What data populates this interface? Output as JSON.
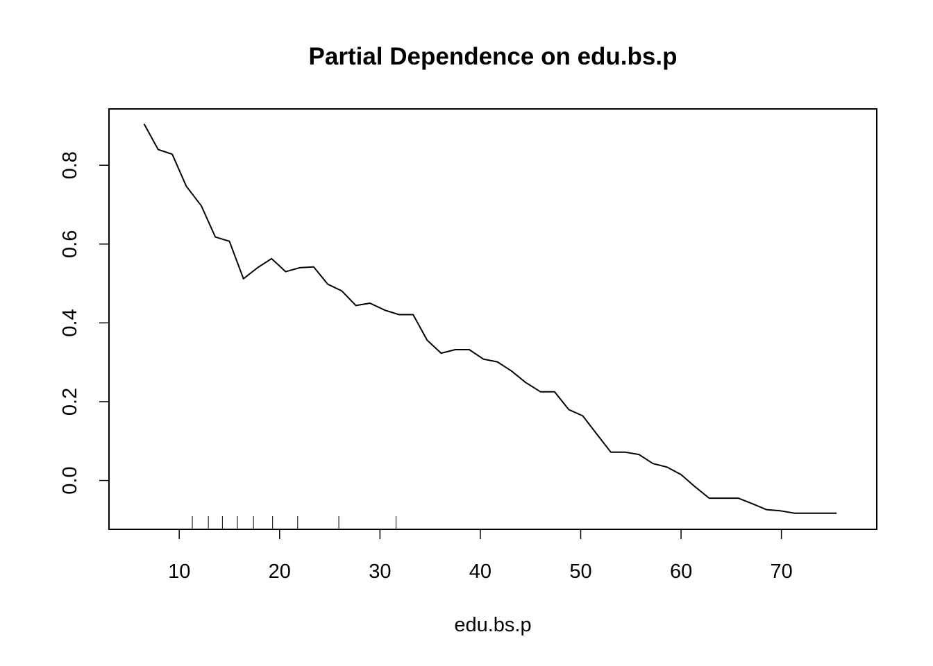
{
  "chart_data": {
    "type": "line",
    "title": "Partial Dependence on edu.bs.p",
    "xlabel": "edu.bs.p",
    "ylabel": "",
    "xlim": [
      3.0,
      79.5
    ],
    "ylim": [
      -0.124,
      0.943
    ],
    "x_ticks": [
      10,
      20,
      30,
      40,
      50,
      60,
      70
    ],
    "x_tick_labels": [
      "10",
      "20",
      "30",
      "40",
      "50",
      "60",
      "70"
    ],
    "y_ticks": [
      0.0,
      0.2,
      0.4,
      0.6,
      0.8
    ],
    "y_tick_labels": [
      "0.0",
      "0.2",
      "0.4",
      "0.6",
      "0.8"
    ],
    "grid": false,
    "legend": "none",
    "rug": [
      11.3,
      12.9,
      14.3,
      15.8,
      17.4,
      19.3,
      21.8,
      25.9,
      31.6
    ],
    "series": [
      {
        "name": "",
        "color": "#000000",
        "x": [
          6.5,
          7.9,
          9.3,
          10.7,
          12.2,
          13.6,
          15.0,
          16.4,
          17.8,
          19.2,
          20.6,
          22.0,
          23.4,
          24.8,
          26.2,
          27.6,
          29.0,
          30.5,
          31.9,
          33.3,
          34.7,
          36.1,
          37.5,
          38.9,
          40.3,
          41.7,
          43.1,
          44.5,
          46.0,
          47.4,
          48.8,
          50.2,
          51.6,
          53.0,
          54.4,
          55.8,
          57.2,
          58.6,
          60.0,
          61.4,
          62.8,
          64.2,
          65.7,
          67.1,
          68.5,
          69.9,
          71.3,
          72.7,
          74.1,
          75.5
        ],
        "y": [
          0.905,
          0.84,
          0.828,
          0.747,
          0.697,
          0.618,
          0.607,
          0.512,
          0.54,
          0.563,
          0.53,
          0.54,
          0.542,
          0.498,
          0.481,
          0.444,
          0.45,
          0.432,
          0.421,
          0.421,
          0.356,
          0.323,
          0.332,
          0.332,
          0.308,
          0.301,
          0.278,
          0.249,
          0.225,
          0.225,
          0.18,
          0.164,
          0.118,
          0.072,
          0.072,
          0.066,
          0.043,
          0.034,
          0.015,
          -0.016,
          -0.045,
          -0.045,
          -0.045,
          -0.059,
          -0.074,
          -0.077,
          -0.083,
          -0.083,
          -0.083,
          -0.083
        ]
      }
    ]
  }
}
